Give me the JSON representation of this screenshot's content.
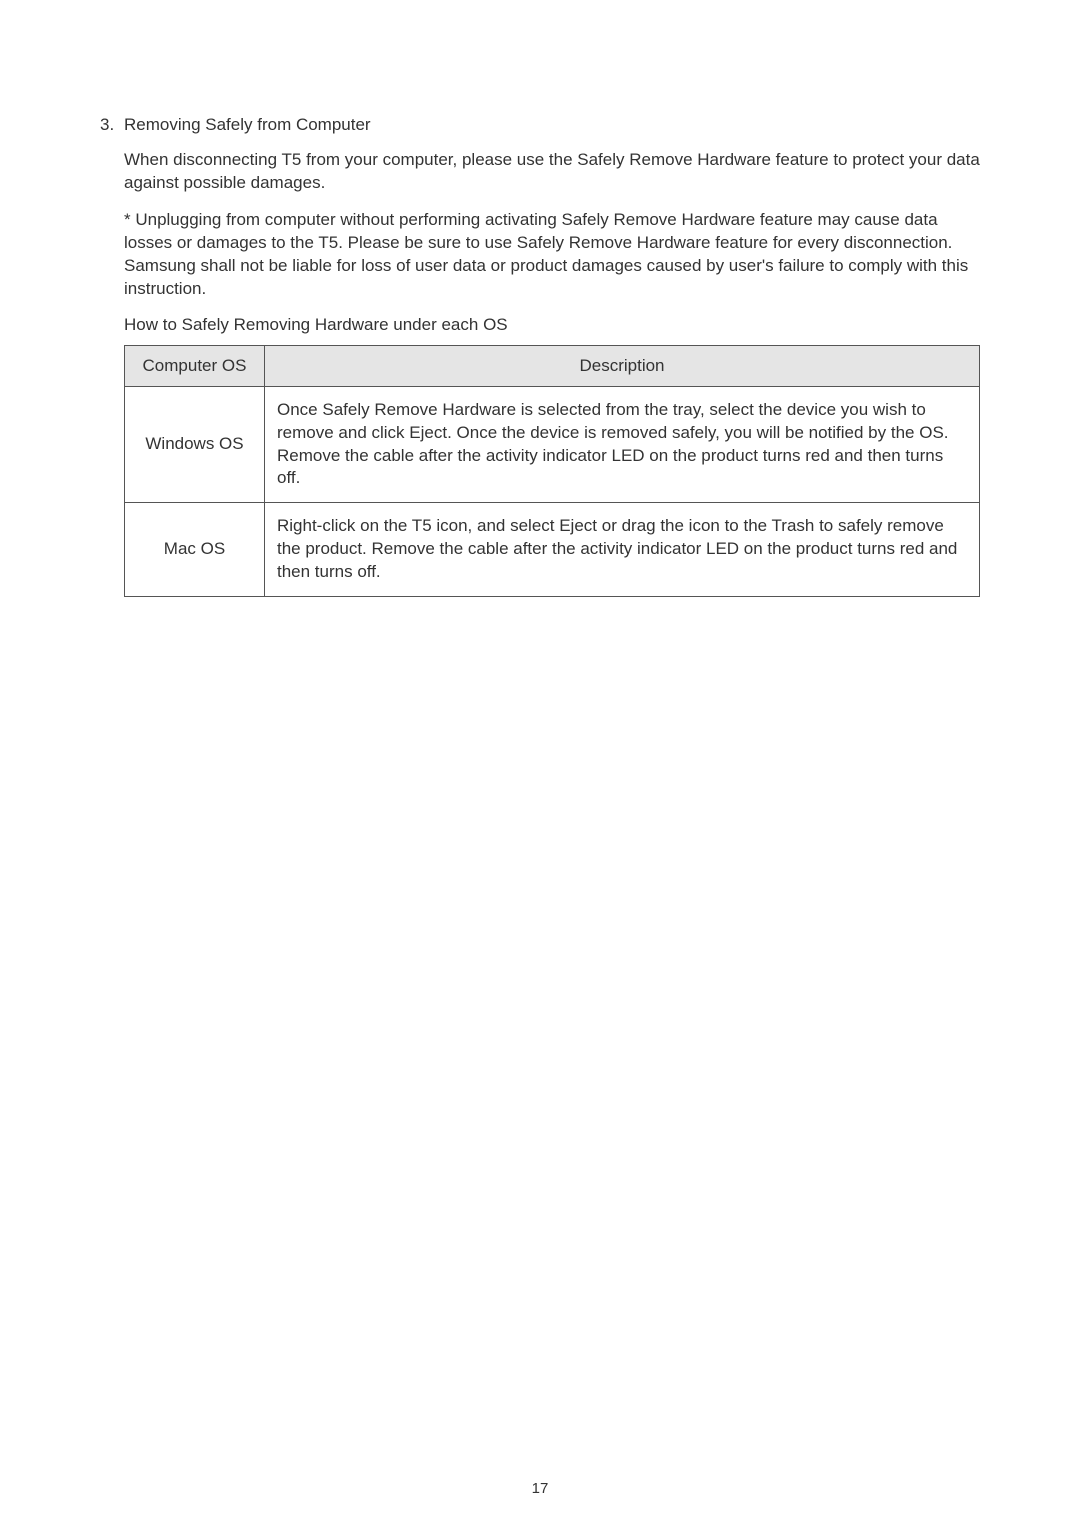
{
  "list": {
    "number": "3.",
    "title": "Removing Safely from Computer",
    "para1": "When disconnecting T5 from your computer, please use the Safely Remove Hardware feature to protect your data against possible damages.",
    "para2": "* Unplugging from computer without performing activating Safely Remove Hardware feature may cause data losses or damages to the T5. Please be sure to use Safely Remove Hardware feature for every disconnection. Samsung shall not be liable for loss of user data or product damages caused by user's failure to comply with this instruction.",
    "tableCaption": "How to Safely Removing Hardware under each OS"
  },
  "table": {
    "headers": {
      "col1": "Computer OS",
      "col2": "Description"
    },
    "rows": [
      {
        "os": "Windows OS",
        "description": "Once Safely Remove Hardware is selected from the tray, select the device you wish to remove and click Eject. Once the device is removed safely, you will be notified by the OS. Remove the cable after the activity indicator LED on the product turns red and then turns off."
      },
      {
        "os": "Mac OS",
        "description": "Right-click on the T5 icon, and select Eject or drag the icon to the Trash to safely remove the product. Remove the cable after the activity indicator LED on the product turns red and then turns off."
      }
    ]
  },
  "pageNumber": "17"
}
